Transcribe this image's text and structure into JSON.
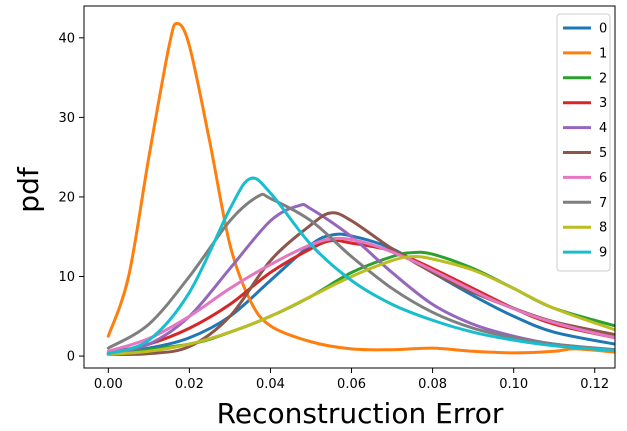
{
  "chart_data": {
    "type": "line",
    "xlabel": "Reconstruction Error",
    "ylabel": "pdf",
    "xlim": [
      -0.006,
      0.125
    ],
    "ylim": [
      -1.5,
      44
    ],
    "xticks": [
      "0.00",
      "0.02",
      "0.04",
      "0.06",
      "0.08",
      "0.10",
      "0.12"
    ],
    "yticks": [
      "0",
      "10",
      "20",
      "30",
      "40"
    ],
    "grid": false,
    "legend": "top-right",
    "series": [
      {
        "name": "0",
        "color": "#1f77b4",
        "points": [
          [
            0.0,
            0.3
          ],
          [
            0.01,
            1.0
          ],
          [
            0.02,
            2.3
          ],
          [
            0.03,
            5.0
          ],
          [
            0.04,
            9.5
          ],
          [
            0.05,
            14.0
          ],
          [
            0.055,
            15.2
          ],
          [
            0.06,
            15.1
          ],
          [
            0.07,
            13.5
          ],
          [
            0.08,
            10.5
          ],
          [
            0.09,
            7.6
          ],
          [
            0.1,
            5.0
          ],
          [
            0.11,
            3.0
          ],
          [
            0.125,
            1.5
          ]
        ]
      },
      {
        "name": "1",
        "color": "#ff7f0e",
        "points": [
          [
            0.0,
            2.5
          ],
          [
            0.005,
            10.0
          ],
          [
            0.01,
            25.0
          ],
          [
            0.015,
            39.0
          ],
          [
            0.017,
            41.8
          ],
          [
            0.02,
            39.0
          ],
          [
            0.025,
            27.0
          ],
          [
            0.03,
            14.0
          ],
          [
            0.035,
            7.0
          ],
          [
            0.04,
            3.8
          ],
          [
            0.05,
            1.8
          ],
          [
            0.06,
            0.9
          ],
          [
            0.07,
            0.8
          ],
          [
            0.08,
            1.0
          ],
          [
            0.09,
            0.6
          ],
          [
            0.1,
            0.4
          ],
          [
            0.11,
            0.6
          ],
          [
            0.115,
            0.9
          ],
          [
            0.125,
            0.5
          ]
        ]
      },
      {
        "name": "2",
        "color": "#2ca02c",
        "points": [
          [
            0.0,
            0.2
          ],
          [
            0.02,
            1.5
          ],
          [
            0.03,
            3.0
          ],
          [
            0.04,
            5.0
          ],
          [
            0.05,
            7.5
          ],
          [
            0.06,
            10.5
          ],
          [
            0.07,
            12.5
          ],
          [
            0.075,
            13.0
          ],
          [
            0.08,
            12.8
          ],
          [
            0.09,
            11.0
          ],
          [
            0.1,
            8.5
          ],
          [
            0.11,
            6.0
          ],
          [
            0.125,
            3.8
          ]
        ]
      },
      {
        "name": "3",
        "color": "#d62728",
        "points": [
          [
            0.0,
            0.4
          ],
          [
            0.01,
            1.5
          ],
          [
            0.02,
            3.5
          ],
          [
            0.03,
            6.5
          ],
          [
            0.04,
            10.5
          ],
          [
            0.05,
            13.5
          ],
          [
            0.055,
            14.5
          ],
          [
            0.06,
            14.2
          ],
          [
            0.07,
            13.2
          ],
          [
            0.08,
            11.0
          ],
          [
            0.09,
            8.5
          ],
          [
            0.1,
            6.0
          ],
          [
            0.11,
            4.0
          ],
          [
            0.125,
            2.3
          ]
        ]
      },
      {
        "name": "4",
        "color": "#9467bd",
        "points": [
          [
            0.0,
            0.3
          ],
          [
            0.01,
            1.5
          ],
          [
            0.02,
            5.0
          ],
          [
            0.03,
            11.0
          ],
          [
            0.04,
            17.0
          ],
          [
            0.047,
            18.9
          ],
          [
            0.05,
            18.5
          ],
          [
            0.06,
            15.0
          ],
          [
            0.07,
            10.5
          ],
          [
            0.08,
            6.5
          ],
          [
            0.09,
            4.0
          ],
          [
            0.1,
            2.5
          ],
          [
            0.11,
            1.5
          ],
          [
            0.125,
            0.7
          ]
        ]
      },
      {
        "name": "5",
        "color": "#8c564b",
        "points": [
          [
            0.0,
            0.2
          ],
          [
            0.01,
            0.3
          ],
          [
            0.02,
            1.2
          ],
          [
            0.03,
            5.0
          ],
          [
            0.04,
            12.0
          ],
          [
            0.05,
            16.5
          ],
          [
            0.055,
            18.0
          ],
          [
            0.06,
            17.0
          ],
          [
            0.07,
            13.5
          ],
          [
            0.08,
            10.5
          ],
          [
            0.09,
            8.0
          ],
          [
            0.1,
            6.0
          ],
          [
            0.11,
            4.3
          ],
          [
            0.125,
            2.7
          ]
        ]
      },
      {
        "name": "6",
        "color": "#e377c2",
        "points": [
          [
            0.0,
            0.6
          ],
          [
            0.01,
            2.2
          ],
          [
            0.02,
            5.0
          ],
          [
            0.03,
            8.5
          ],
          [
            0.04,
            11.5
          ],
          [
            0.05,
            14.0
          ],
          [
            0.057,
            14.8
          ],
          [
            0.065,
            14.0
          ],
          [
            0.075,
            12.0
          ],
          [
            0.085,
            9.5
          ],
          [
            0.095,
            7.0
          ],
          [
            0.105,
            5.0
          ],
          [
            0.115,
            3.5
          ],
          [
            0.125,
            2.3
          ]
        ]
      },
      {
        "name": "7",
        "color": "#7f7f7f",
        "points": [
          [
            0.0,
            1.0
          ],
          [
            0.01,
            4.0
          ],
          [
            0.02,
            10.0
          ],
          [
            0.03,
            17.0
          ],
          [
            0.037,
            20.1
          ],
          [
            0.04,
            19.8
          ],
          [
            0.05,
            17.0
          ],
          [
            0.06,
            12.5
          ],
          [
            0.07,
            8.5
          ],
          [
            0.08,
            5.5
          ],
          [
            0.09,
            3.5
          ],
          [
            0.1,
            2.3
          ],
          [
            0.11,
            1.5
          ],
          [
            0.125,
            0.8
          ]
        ]
      },
      {
        "name": "8",
        "color": "#bcbd22",
        "points": [
          [
            0.0,
            0.2
          ],
          [
            0.01,
            0.6
          ],
          [
            0.02,
            1.5
          ],
          [
            0.03,
            3.0
          ],
          [
            0.04,
            5.0
          ],
          [
            0.05,
            7.5
          ],
          [
            0.06,
            10.0
          ],
          [
            0.07,
            12.0
          ],
          [
            0.075,
            12.5
          ],
          [
            0.08,
            12.2
          ],
          [
            0.09,
            10.8
          ],
          [
            0.1,
            8.5
          ],
          [
            0.11,
            6.0
          ],
          [
            0.125,
            3.3
          ]
        ]
      },
      {
        "name": "9",
        "color": "#17becf",
        "points": [
          [
            0.0,
            0.3
          ],
          [
            0.01,
            2.0
          ],
          [
            0.02,
            8.0
          ],
          [
            0.03,
            18.5
          ],
          [
            0.035,
            22.3
          ],
          [
            0.04,
            20.5
          ],
          [
            0.05,
            14.0
          ],
          [
            0.06,
            9.5
          ],
          [
            0.07,
            6.5
          ],
          [
            0.08,
            4.5
          ],
          [
            0.09,
            3.0
          ],
          [
            0.1,
            2.0
          ],
          [
            0.11,
            1.3
          ],
          [
            0.125,
            0.7
          ]
        ]
      }
    ]
  }
}
